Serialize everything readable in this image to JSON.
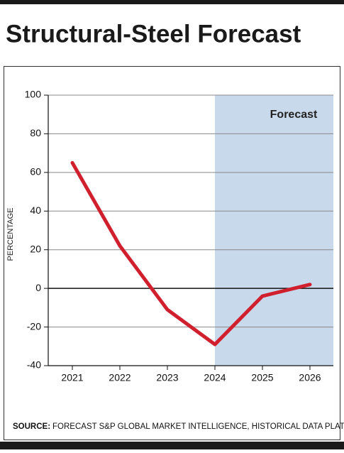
{
  "chart_data": {
    "type": "line",
    "title": "Structural-Steel Forecast",
    "y_label": "PERCENTAGE",
    "annotation": "Forecast",
    "source_label": "SOURCE:",
    "source_text": "FORECAST S&P GLOBAL MARKET INTELLIGENCE, HISTORICAL DATA PLATTS.",
    "categories": [
      "2021",
      "2022",
      "2023",
      "2024",
      "2025",
      "2026"
    ],
    "series": [
      {
        "name": "Structural steel",
        "color": "#d0202e",
        "values": [
          65,
          22,
          -11,
          -29,
          -4,
          2
        ]
      }
    ],
    "ylim": [
      -40,
      100
    ],
    "yticks": [
      -40,
      -20,
      0,
      20,
      40,
      60,
      80,
      100
    ],
    "grid": true
  }
}
